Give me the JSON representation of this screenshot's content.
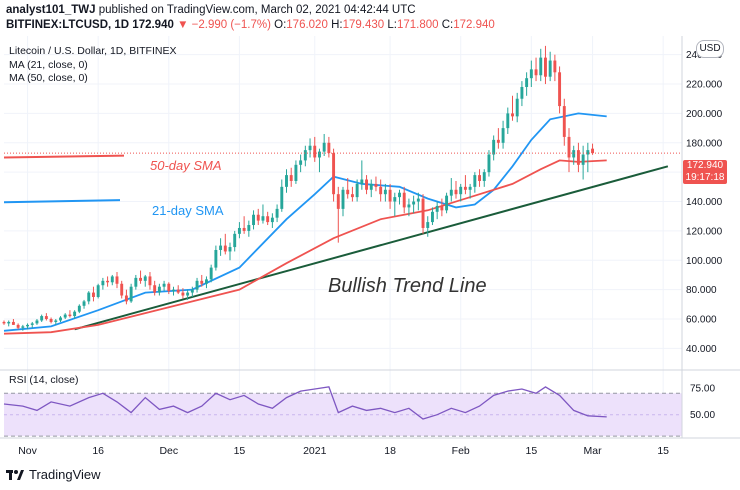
{
  "header": {
    "author": "analyst101_TWJ",
    "published_text": "published on TradingView.com, March 02, 2021 04:42:44 UTC",
    "symbol": "BITFINEX:LTCUSD, 1D",
    "last": "172.940",
    "change": "▼ −2.990 (−1.7%)",
    "o_label": "O:",
    "o_value": "176.020",
    "h_label": "H:",
    "h_value": "179.430",
    "l_label": "L:",
    "l_value": "171.800",
    "c_label": "C:",
    "c_value": "172.940"
  },
  "legend": {
    "title": "Litecoin / U.S. Dollar, 1D, BITFINEX",
    "ma21": "MA (21, close, 0)",
    "ma50": "MA (50, close, 0)"
  },
  "currency_button": "USD",
  "price_tag": {
    "price": "172.940",
    "countdown": "19:17:18"
  },
  "annotations": {
    "sma50": "50-day SMA",
    "sma21": "21-day SMA",
    "trend": "Bullish Trend Line"
  },
  "rsi": {
    "label": "RSI (14, close)",
    "ticks": [
      "75.00",
      "50.00"
    ]
  },
  "brand": {
    "name": "TradingView"
  },
  "colors": {
    "up": "#26a69a",
    "down": "#ef5350",
    "ma21": "#2196f3",
    "ma50": "#ef5350",
    "trend": "#1a5c3a",
    "rsi": "#7e57c2",
    "rsi_band": "#ede1fb"
  },
  "chart_data": {
    "type": "candlestick",
    "title": "Litecoin / U.S. Dollar, 1D, BITFINEX",
    "y_ticks": [
      "40.000",
      "60.000",
      "80.000",
      "100.000",
      "120.000",
      "140.000",
      "160.000",
      "180.000",
      "200.000",
      "220.000",
      "240.000"
    ],
    "y_tick_values": [
      40,
      60,
      80,
      100,
      120,
      140,
      160,
      180,
      200,
      220,
      240
    ],
    "ylim": [
      28,
      250
    ],
    "x_labels": [
      "Nov",
      "16",
      "Dec",
      "15",
      "2021",
      "18",
      "Feb",
      "15",
      "Mar",
      "15"
    ],
    "x_label_days": [
      1,
      16,
      31,
      46,
      62,
      78,
      93,
      108,
      121,
      136
    ],
    "xlim": [
      -4,
      140
    ],
    "candles_note": "day index from 2020-11-01; values in USD",
    "candles": [
      [
        -4,
        58,
        59,
        56,
        57
      ],
      [
        -3,
        57,
        59,
        55,
        58
      ],
      [
        -2,
        58,
        60,
        56,
        56
      ],
      [
        -1,
        56,
        57,
        53,
        54
      ],
      [
        0,
        54,
        56,
        52,
        55
      ],
      [
        1,
        55,
        57,
        53,
        56
      ],
      [
        2,
        56,
        58,
        54,
        57
      ],
      [
        3,
        57,
        60,
        56,
        59
      ],
      [
        4,
        59,
        63,
        58,
        62
      ],
      [
        5,
        62,
        64,
        59,
        60
      ],
      [
        6,
        60,
        61,
        57,
        58
      ],
      [
        7,
        58,
        60,
        56,
        59
      ],
      [
        8,
        59,
        62,
        58,
        61
      ],
      [
        9,
        61,
        64,
        60,
        63
      ],
      [
        10,
        63,
        66,
        61,
        62
      ],
      [
        11,
        62,
        66,
        60,
        65
      ],
      [
        12,
        65,
        70,
        64,
        69
      ],
      [
        13,
        69,
        73,
        67,
        72
      ],
      [
        14,
        72,
        79,
        70,
        78
      ],
      [
        15,
        78,
        82,
        72,
        75
      ],
      [
        16,
        75,
        84,
        74,
        83
      ],
      [
        17,
        83,
        88,
        80,
        86
      ],
      [
        18,
        86,
        89,
        82,
        85
      ],
      [
        19,
        85,
        90,
        83,
        89
      ],
      [
        20,
        89,
        92,
        81,
        84
      ],
      [
        21,
        84,
        86,
        74,
        76
      ],
      [
        22,
        76,
        80,
        70,
        72
      ],
      [
        23,
        72,
        84,
        71,
        82
      ],
      [
        24,
        82,
        90,
        80,
        88
      ],
      [
        25,
        88,
        93,
        84,
        86
      ],
      [
        26,
        86,
        90,
        82,
        89
      ],
      [
        27,
        89,
        92,
        80,
        83
      ],
      [
        28,
        83,
        86,
        76,
        78
      ],
      [
        29,
        78,
        84,
        76,
        82
      ],
      [
        30,
        82,
        86,
        79,
        84
      ],
      [
        31,
        84,
        85,
        77,
        79
      ],
      [
        32,
        79,
        82,
        76,
        80
      ],
      [
        33,
        80,
        83,
        77,
        78
      ],
      [
        34,
        78,
        81,
        74,
        76
      ],
      [
        35,
        76,
        80,
        73,
        78
      ],
      [
        36,
        78,
        82,
        75,
        80
      ],
      [
        37,
        80,
        88,
        78,
        86
      ],
      [
        38,
        86,
        90,
        82,
        84
      ],
      [
        39,
        84,
        89,
        81,
        87
      ],
      [
        40,
        87,
        97,
        85,
        95
      ],
      [
        41,
        95,
        110,
        93,
        107
      ],
      [
        42,
        107,
        115,
        103,
        110
      ],
      [
        43,
        110,
        118,
        104,
        106
      ],
      [
        44,
        106,
        112,
        100,
        109
      ],
      [
        45,
        109,
        120,
        106,
        118
      ],
      [
        46,
        118,
        126,
        115,
        122
      ],
      [
        47,
        122,
        130,
        118,
        120
      ],
      [
        48,
        120,
        127,
        116,
        124
      ],
      [
        49,
        124,
        134,
        121,
        131
      ],
      [
        50,
        131,
        135,
        124,
        127
      ],
      [
        51,
        127,
        138,
        125,
        130
      ],
      [
        52,
        130,
        133,
        124,
        126
      ],
      [
        53,
        126,
        132,
        122,
        129
      ],
      [
        54,
        129,
        138,
        126,
        135
      ],
      [
        55,
        135,
        155,
        133,
        150
      ],
      [
        56,
        150,
        162,
        146,
        158
      ],
      [
        57,
        158,
        163,
        150,
        154
      ],
      [
        58,
        154,
        168,
        152,
        165
      ],
      [
        59,
        165,
        172,
        160,
        168
      ],
      [
        60,
        168,
        178,
        164,
        175
      ],
      [
        61,
        175,
        183,
        170,
        178
      ],
      [
        62,
        178,
        184,
        167,
        170
      ],
      [
        63,
        170,
        176,
        160,
        174
      ],
      [
        64,
        174,
        186,
        171,
        180
      ],
      [
        65,
        180,
        184,
        170,
        173
      ],
      [
        66,
        173,
        176,
        140,
        145
      ],
      [
        67,
        145,
        150,
        112,
        135
      ],
      [
        68,
        135,
        150,
        130,
        148
      ],
      [
        69,
        148,
        156,
        142,
        145
      ],
      [
        70,
        145,
        150,
        140,
        143
      ],
      [
        71,
        143,
        155,
        140,
        152
      ],
      [
        72,
        152,
        168,
        148,
        155
      ],
      [
        73,
        155,
        158,
        145,
        148
      ],
      [
        74,
        148,
        155,
        143,
        152
      ],
      [
        75,
        152,
        157,
        147,
        150
      ],
      [
        76,
        150,
        155,
        140,
        145
      ],
      [
        77,
        145,
        152,
        140,
        148
      ],
      [
        78,
        148,
        152,
        135,
        140
      ],
      [
        79,
        140,
        146,
        130,
        143
      ],
      [
        80,
        143,
        148,
        138,
        146
      ],
      [
        81,
        146,
        150,
        132,
        136
      ],
      [
        82,
        136,
        142,
        130,
        138
      ],
      [
        83,
        138,
        144,
        132,
        140
      ],
      [
        84,
        140,
        146,
        134,
        142
      ],
      [
        85,
        142,
        145,
        118,
        122
      ],
      [
        86,
        122,
        130,
        116,
        126
      ],
      [
        87,
        126,
        136,
        124,
        133
      ],
      [
        88,
        133,
        140,
        128,
        137
      ],
      [
        89,
        137,
        142,
        130,
        134
      ],
      [
        90,
        134,
        146,
        132,
        144
      ],
      [
        91,
        144,
        156,
        140,
        148
      ],
      [
        92,
        148,
        154,
        142,
        145
      ],
      [
        93,
        145,
        152,
        140,
        150
      ],
      [
        94,
        150,
        158,
        145,
        148
      ],
      [
        95,
        148,
        152,
        142,
        150
      ],
      [
        96,
        150,
        160,
        146,
        158
      ],
      [
        97,
        158,
        162,
        150,
        154
      ],
      [
        98,
        154,
        162,
        150,
        160
      ],
      [
        99,
        160,
        175,
        157,
        172
      ],
      [
        100,
        172,
        185,
        168,
        182
      ],
      [
        101,
        182,
        190,
        176,
        180
      ],
      [
        102,
        180,
        195,
        176,
        190
      ],
      [
        103,
        190,
        204,
        186,
        200
      ],
      [
        104,
        200,
        212,
        195,
        198
      ],
      [
        105,
        198,
        214,
        194,
        210
      ],
      [
        106,
        210,
        222,
        205,
        218
      ],
      [
        107,
        218,
        228,
        212,
        224
      ],
      [
        108,
        224,
        236,
        218,
        230
      ],
      [
        109,
        230,
        238,
        222,
        226
      ],
      [
        110,
        226,
        244,
        222,
        238
      ],
      [
        111,
        238,
        246,
        220,
        225
      ],
      [
        112,
        225,
        242,
        222,
        236
      ],
      [
        113,
        236,
        240,
        222,
        228
      ],
      [
        114,
        228,
        232,
        200,
        205
      ],
      [
        115,
        205,
        210,
        178,
        184
      ],
      [
        116,
        184,
        190,
        160,
        170
      ],
      [
        117,
        170,
        178,
        165,
        175
      ],
      [
        118,
        175,
        180,
        160,
        165
      ],
      [
        119,
        165,
        178,
        155,
        172
      ],
      [
        120,
        172,
        180,
        160,
        175
      ],
      [
        121,
        176,
        179.43,
        171.8,
        172.94
      ]
    ],
    "series": [
      {
        "name": "MA (21, close, 0)",
        "points": [
          [
            -4,
            52
          ],
          [
            6,
            55
          ],
          [
            16,
            66
          ],
          [
            26,
            78
          ],
          [
            36,
            80
          ],
          [
            46,
            95
          ],
          [
            56,
            128
          ],
          [
            62,
            145
          ],
          [
            66,
            157
          ],
          [
            72,
            152
          ],
          [
            80,
            150
          ],
          [
            86,
            142
          ],
          [
            92,
            136
          ],
          [
            96,
            138
          ],
          [
            100,
            148
          ],
          [
            104,
            164
          ],
          [
            108,
            182
          ],
          [
            112,
            196
          ],
          [
            118,
            200
          ],
          [
            124,
            198
          ]
        ]
      },
      {
        "name": "MA (50, close, 0)",
        "points": [
          [
            -4,
            50
          ],
          [
            6,
            51
          ],
          [
            16,
            56
          ],
          [
            26,
            64
          ],
          [
            36,
            72
          ],
          [
            46,
            80
          ],
          [
            56,
            98
          ],
          [
            66,
            115
          ],
          [
            76,
            128
          ],
          [
            86,
            134
          ],
          [
            96,
            144
          ],
          [
            104,
            152
          ],
          [
            110,
            162
          ],
          [
            114,
            168
          ],
          [
            118,
            167
          ],
          [
            124,
            168
          ]
        ]
      }
    ],
    "trend_line": [
      [
        11,
        53
      ],
      [
        137,
        164
      ]
    ],
    "sma50_arrow_y": 172.94,
    "sma21_arrow_y": 141,
    "rsi_values": [
      [
        -4,
        60
      ],
      [
        0,
        58
      ],
      [
        3,
        54
      ],
      [
        6,
        62
      ],
      [
        10,
        58
      ],
      [
        14,
        66
      ],
      [
        17,
        70
      ],
      [
        20,
        62
      ],
      [
        23,
        52
      ],
      [
        26,
        66
      ],
      [
        29,
        55
      ],
      [
        32,
        58
      ],
      [
        35,
        52
      ],
      [
        38,
        58
      ],
      [
        41,
        70
      ],
      [
        44,
        64
      ],
      [
        47,
        68
      ],
      [
        50,
        60
      ],
      [
        53,
        56
      ],
      [
        56,
        66
      ],
      [
        59,
        72
      ],
      [
        62,
        74
      ],
      [
        65,
        76
      ],
      [
        67,
        52
      ],
      [
        70,
        58
      ],
      [
        73,
        54
      ],
      [
        76,
        56
      ],
      [
        79,
        52
      ],
      [
        82,
        56
      ],
      [
        85,
        46
      ],
      [
        88,
        50
      ],
      [
        91,
        56
      ],
      [
        94,
        52
      ],
      [
        97,
        58
      ],
      [
        100,
        68
      ],
      [
        103,
        72
      ],
      [
        106,
        74
      ],
      [
        109,
        70
      ],
      [
        111,
        76
      ],
      [
        114,
        68
      ],
      [
        117,
        54
      ],
      [
        120,
        49
      ],
      [
        124,
        48
      ]
    ],
    "rsi_ylim": [
      32,
      88
    ],
    "rsi_band": [
      30,
      70
    ]
  }
}
